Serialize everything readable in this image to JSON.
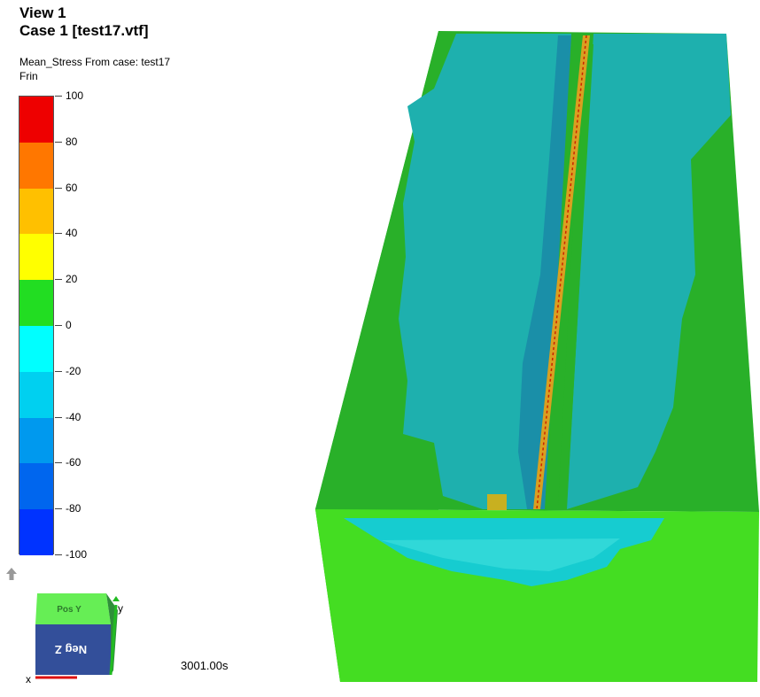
{
  "view": {
    "title": "View 1",
    "case": "Case 1  [test17.vtf]"
  },
  "result": {
    "variable_line": "Mean_Stress  From case: test17",
    "component": "Frin"
  },
  "legend": {
    "ticks": [
      "100",
      "80",
      "60",
      "40",
      "20",
      "0",
      "-20",
      "-40",
      "-60",
      "-80",
      "-100"
    ],
    "colors": [
      "#ee0000",
      "#ff7700",
      "#ffc000",
      "#ffff00",
      "#22dd22",
      "#00ffff",
      "#00d0f0",
      "#0099ee",
      "#0066ee",
      "#0033ff"
    ]
  },
  "axis_cube": {
    "top_label": "Pos Y",
    "front_label": "Neg Z",
    "axis_x": "x",
    "axis_y": "y"
  },
  "time": "3001.00s",
  "model_colors": {
    "side": "#2fbf2f",
    "top_green": "#29b029",
    "top_cyan": "#1eb0ae",
    "face_green": "#44dd22",
    "face_cyan": "#16ccd0",
    "seam": "#d9a020"
  }
}
